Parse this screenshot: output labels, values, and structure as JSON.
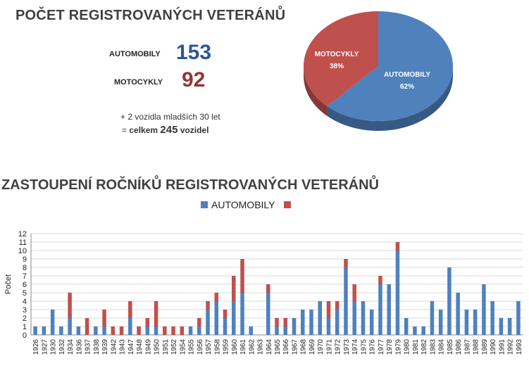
{
  "summary": {
    "title": "POČET REGISTROVANÝCH VETERÁNŮ",
    "auto_label": "AUTOMOBILY",
    "auto_count": "153",
    "moto_label": "MOTOCYKLY",
    "moto_count": "92",
    "note_line1": "+ 2 vozidla mladších 30 let",
    "note_prefix": "= ",
    "note_celkem": "celkem ",
    "note_total": "245",
    "note_suffix": " vozidel"
  },
  "pie_chart": {
    "type": "pie",
    "slices": [
      {
        "label": "AUTOMOBILY",
        "percent_label": "62%",
        "value": 62,
        "color": "#4f81bd"
      },
      {
        "label": "MOTOCYKLY",
        "percent_label": "38%",
        "value": 38,
        "color": "#c0504d"
      }
    ]
  },
  "bar_section": {
    "title": "ZASTOUPENÍ ROČNÍKŮ REGISTROVANÝCH VETERÁNŮ",
    "legend": [
      "AUTOMOBILY",
      ""
    ]
  },
  "chart_data": {
    "type": "bar",
    "stacked": true,
    "ylabel": "Počet",
    "ylim": [
      0,
      12
    ],
    "yticks": [
      0,
      1,
      2,
      3,
      4,
      5,
      6,
      7,
      8,
      9,
      10,
      11,
      12
    ],
    "grid": true,
    "legend_position": "top",
    "categories": [
      "1926",
      "1927",
      "1930",
      "1932",
      "1934",
      "1936",
      "1937",
      "1938",
      "1939",
      "1942",
      "1943",
      "1947",
      "1948",
      "1949",
      "1950",
      "1951",
      "1952",
      "1954",
      "1955",
      "1956",
      "1957",
      "1958",
      "1959",
      "1960",
      "1961",
      "1962",
      "1963",
      "1964",
      "1965",
      "1966",
      "1967",
      "1968",
      "1969",
      "1970",
      "1971",
      "1972",
      "1973",
      "1974",
      "1975",
      "1976",
      "1977",
      "1978",
      "1979",
      "1980",
      "1981",
      "1982",
      "1983",
      "1984",
      "1985",
      "1986",
      "1987",
      "1988",
      "1989",
      "1990",
      "1991",
      "1992",
      "1993"
    ],
    "series": [
      {
        "name": "AUTOMOBILY",
        "color": "#4f81bd",
        "values": [
          1,
          1,
          3,
          1,
          2,
          1,
          0,
          1,
          1,
          0,
          0,
          2,
          0,
          1,
          1,
          0,
          0,
          0,
          1,
          1,
          3,
          4,
          2,
          4,
          5,
          1,
          0,
          5,
          1,
          1,
          2,
          3,
          3,
          4,
          2,
          3,
          8,
          4,
          4,
          3,
          6,
          6,
          10,
          2,
          1,
          1,
          4,
          3,
          8,
          5,
          3,
          3,
          6,
          4,
          2,
          2,
          4
        ]
      },
      {
        "name": "",
        "color": "#c0504d",
        "values": [
          0,
          0,
          0,
          0,
          3,
          0,
          2,
          0,
          2,
          1,
          1,
          2,
          1,
          1,
          3,
          1,
          1,
          1,
          0,
          1,
          1,
          1,
          1,
          3,
          4,
          0,
          0,
          1,
          1,
          1,
          0,
          0,
          0,
          0,
          2,
          1,
          1,
          2,
          0,
          0,
          1,
          0,
          1,
          0,
          0,
          0,
          0,
          0,
          0,
          0,
          0,
          0,
          0,
          0,
          0,
          0,
          0
        ]
      }
    ]
  }
}
